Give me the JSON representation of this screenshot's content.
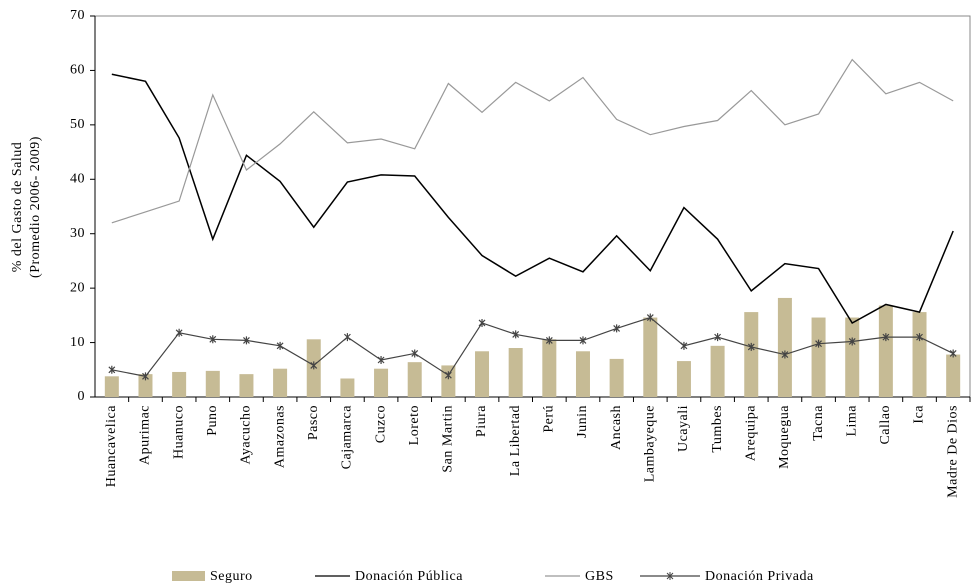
{
  "chart_data": {
    "type": "bar",
    "y_label": [
      "% del Gasto de Salud",
      "(Promedio  2006- 2009)"
    ],
    "categories": [
      "Huancavelica",
      "Apurimac",
      "Huanuco",
      "Puno",
      "Ayacucho",
      "Amazonas",
      "Pasco",
      "Cajamarca",
      "Cuzco",
      "Loreto",
      "San Martin",
      "Piura",
      "La Libertad",
      "Perú",
      "Junin",
      "Ancash",
      "Lambayeque",
      "Ucayali",
      "Tumbes",
      "Arequipa",
      "Moquegua",
      "Tacna",
      "Lima",
      "Callao",
      "Ica",
      "Madre De Dios"
    ],
    "series": [
      {
        "name": "Seguro",
        "type": "bar",
        "color": "#c6bb95",
        "values": [
          3.8,
          4.2,
          4.6,
          4.8,
          4.2,
          5.2,
          10.6,
          3.4,
          5.2,
          6.4,
          5.8,
          8.4,
          9.0,
          10.6,
          8.4,
          7.0,
          14.6,
          6.6,
          9.4,
          15.6,
          18.2,
          14.6,
          14.6,
          16.8,
          15.6,
          7.8
        ]
      },
      {
        "name": "Donación Pública",
        "type": "line",
        "color": "#000000",
        "values": [
          59.3,
          58,
          47.6,
          29,
          44.4,
          39.6,
          31.2,
          39.5,
          40.8,
          40.6,
          33,
          26,
          22.2,
          25.5,
          23,
          29.6,
          23.2,
          34.8,
          29,
          19.5,
          24.5,
          23.6,
          13.6,
          17,
          15.6,
          30.5
        ]
      },
      {
        "name": "GBS",
        "type": "line",
        "color": "#999999",
        "values": [
          32,
          34,
          36,
          55.5,
          41.7,
          46.5,
          52.4,
          46.7,
          47.4,
          45.6,
          57.6,
          52.3,
          57.8,
          54.4,
          58.7,
          51,
          48.2,
          49.7,
          50.8,
          56.3,
          50,
          52,
          62,
          55.7,
          57.8,
          54.4
        ]
      },
      {
        "name": "Donación Privada",
        "type": "line",
        "marker": "x",
        "color": "#444444",
        "values": [
          5,
          3.8,
          11.8,
          10.6,
          10.4,
          9.4,
          5.8,
          11,
          6.8,
          8,
          4,
          13.6,
          11.5,
          10.4,
          10.4,
          12.6,
          14.6,
          9.4,
          11,
          9.2,
          7.8,
          9.8,
          10.2,
          11,
          11,
          8
        ]
      }
    ],
    "ylim": [
      0,
      70
    ],
    "yticks": [
      0,
      10,
      20,
      30,
      40,
      50,
      60,
      70
    ],
    "legend": "bottom"
  }
}
